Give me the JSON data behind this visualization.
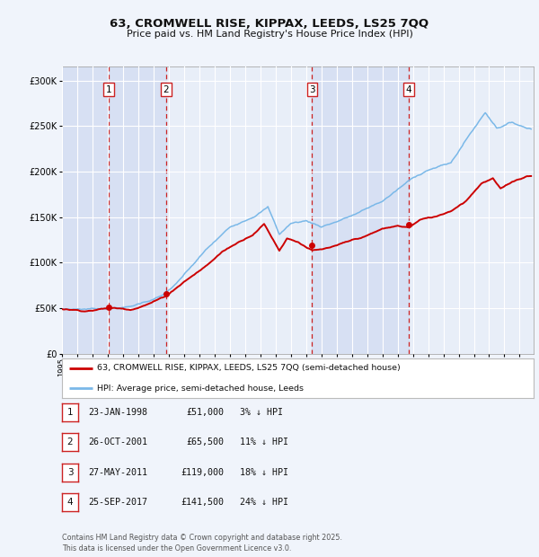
{
  "title": "63, CROMWELL RISE, KIPPAX, LEEDS, LS25 7QQ",
  "subtitle": "Price paid vs. HM Land Registry's House Price Index (HPI)",
  "background_color": "#f0f4fb",
  "plot_bg_color": "#e8eef8",
  "grid_color": "#ffffff",
  "sale_dates": [
    "1998-01-23",
    "2001-10-26",
    "2011-05-27",
    "2017-09-25"
  ],
  "sale_prices": [
    51000,
    65500,
    119000,
    141500
  ],
  "sale_labels": [
    "1",
    "2",
    "3",
    "4"
  ],
  "sale_info": [
    {
      "label": "1",
      "date": "23-JAN-1998",
      "price": "£51,000",
      "pct": "3% ↓ HPI"
    },
    {
      "label": "2",
      "date": "26-OCT-2001",
      "price": "£65,500",
      "pct": "11% ↓ HPI"
    },
    {
      "label": "3",
      "date": "27-MAY-2011",
      "price": "£119,000",
      "pct": "18% ↓ HPI"
    },
    {
      "label": "4",
      "date": "25-SEP-2017",
      "price": "£141,500",
      "pct": "24% ↓ HPI"
    }
  ],
  "hpi_line_color": "#7ab8e8",
  "price_line_color": "#cc0000",
  "dashed_line_color": "#cc2222",
  "marker_color": "#cc0000",
  "shade_color": "#ccd8f0",
  "legend_line_color": "#cc0000",
  "legend_hpi_color": "#7ab8e8",
  "legend_box_color": "#ffffff",
  "legend_border_color": "#bbbbbb",
  "footer_text": "Contains HM Land Registry data © Crown copyright and database right 2025.\nThis data is licensed under the Open Government Licence v3.0.",
  "ylabel_ticks": [
    "£0",
    "£50K",
    "£100K",
    "£150K",
    "£200K",
    "£250K",
    "£300K"
  ],
  "ytick_values": [
    0,
    50000,
    100000,
    150000,
    200000,
    250000,
    300000
  ],
  "ylim": [
    0,
    315000
  ],
  "hpi_keypoints_x": [
    1995.0,
    1997.0,
    1999.5,
    2001.5,
    2002.5,
    2004.5,
    2006.0,
    2007.5,
    2008.5,
    2009.25,
    2010.0,
    2011.0,
    2012.0,
    2013.0,
    2014.5,
    2016.0,
    2017.75,
    2019.0,
    2020.5,
    2021.5,
    2022.75,
    2023.5,
    2024.5,
    2025.5
  ],
  "hpi_keypoints_y": [
    49000,
    50000,
    53000,
    65000,
    78000,
    115000,
    138000,
    152000,
    163000,
    133000,
    145000,
    148000,
    142000,
    148000,
    158000,
    170000,
    192000,
    205000,
    212000,
    238000,
    268000,
    252000,
    258000,
    252000
  ],
  "price_keypoints_x": [
    1995.0,
    1996.5,
    1998.07,
    1999.5,
    2000.5,
    2001.08,
    2001.82,
    2003.0,
    2004.5,
    2005.5,
    2006.5,
    2007.5,
    2008.25,
    2009.25,
    2009.75,
    2010.5,
    2011.42,
    2012.0,
    2013.0,
    2014.0,
    2015.0,
    2016.0,
    2017.0,
    2017.73,
    2018.5,
    2019.5,
    2020.5,
    2021.5,
    2022.5,
    2023.25,
    2023.75,
    2024.5,
    2025.5
  ],
  "price_keypoints_y": [
    49000,
    47500,
    51000,
    50000,
    56000,
    60000,
    65500,
    82000,
    100000,
    115000,
    125000,
    135000,
    147000,
    118000,
    132000,
    128000,
    119000,
    119500,
    123000,
    128000,
    133000,
    140000,
    143000,
    141500,
    150000,
    153000,
    160000,
    172000,
    192000,
    197000,
    185000,
    193000,
    200000
  ]
}
